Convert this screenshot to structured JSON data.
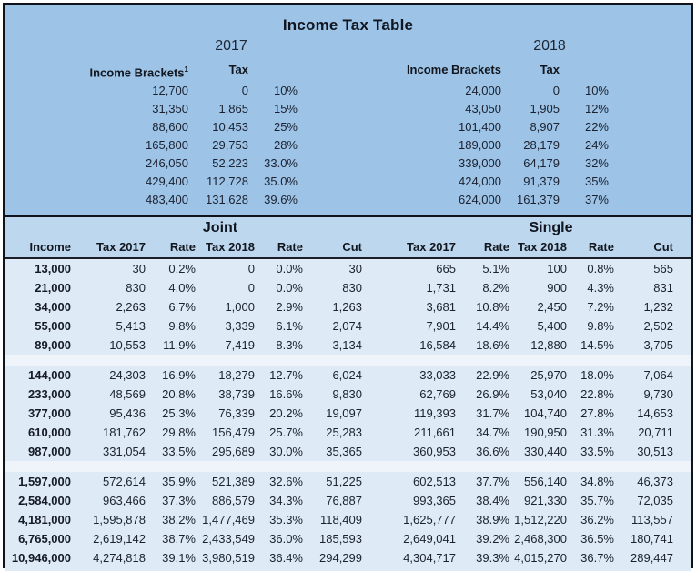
{
  "title": "Income Tax Table",
  "colors": {
    "top_background": "#9DC3E6",
    "header_band": "#BDD7EE",
    "data_row": "#DEEAF6",
    "separator_row": "#EFF4FA",
    "border": "#101319"
  },
  "top_table": {
    "year_2017": "2017",
    "year_2018": "2018",
    "header_brackets_2017": "Income Brackets",
    "footnote_marker": "1",
    "header_tax_2017": "Tax",
    "header_brackets_2018": "Income Brackets",
    "header_tax_2018": "Tax",
    "rows": [
      [
        "12,700",
        "0",
        "10%",
        "24,000",
        "0",
        "10%"
      ],
      [
        "31,350",
        "1,865",
        "15%",
        "43,050",
        "1,905",
        "12%"
      ],
      [
        "88,600",
        "10,453",
        "25%",
        "101,400",
        "8,907",
        "22%"
      ],
      [
        "165,800",
        "29,753",
        "28%",
        "189,000",
        "28,179",
        "24%"
      ],
      [
        "246,050",
        "52,223",
        "33.0%",
        "339,000",
        "64,179",
        "32%"
      ],
      [
        "429,400",
        "112,728",
        "35.0%",
        "424,000",
        "91,379",
        "35%"
      ],
      [
        "483,400",
        "131,628",
        "39.6%",
        "624,000",
        "161,379",
        "37%"
      ]
    ]
  },
  "bottom_table": {
    "joint_label": "Joint",
    "single_label": "Single",
    "col_headers": [
      "Income",
      "Tax 2017",
      "Rate",
      "Tax 2018",
      "Rate",
      "Cut",
      "Tax 2017",
      "Rate",
      "Tax 2018",
      "Rate",
      "Cut"
    ],
    "groups": [
      [
        [
          "13,000",
          "30",
          "0.2%",
          "0",
          "0.0%",
          "30",
          "665",
          "5.1%",
          "100",
          "0.8%",
          "565"
        ],
        [
          "21,000",
          "830",
          "4.0%",
          "0",
          "0.0%",
          "830",
          "1,731",
          "8.2%",
          "900",
          "4.3%",
          "831"
        ],
        [
          "34,000",
          "2,263",
          "6.7%",
          "1,000",
          "2.9%",
          "1,263",
          "3,681",
          "10.8%",
          "2,450",
          "7.2%",
          "1,232"
        ],
        [
          "55,000",
          "5,413",
          "9.8%",
          "3,339",
          "6.1%",
          "2,074",
          "7,901",
          "14.4%",
          "5,400",
          "9.8%",
          "2,502"
        ],
        [
          "89,000",
          "10,553",
          "11.9%",
          "7,419",
          "8.3%",
          "3,134",
          "16,584",
          "18.6%",
          "12,880",
          "14.5%",
          "3,705"
        ]
      ],
      [
        [
          "144,000",
          "24,303",
          "16.9%",
          "18,279",
          "12.7%",
          "6,024",
          "33,033",
          "22.9%",
          "25,970",
          "18.0%",
          "7,064"
        ],
        [
          "233,000",
          "48,569",
          "20.8%",
          "38,739",
          "16.6%",
          "9,830",
          "62,769",
          "26.9%",
          "53,040",
          "22.8%",
          "9,730"
        ],
        [
          "377,000",
          "95,436",
          "25.3%",
          "76,339",
          "20.2%",
          "19,097",
          "119,393",
          "31.7%",
          "104,740",
          "27.8%",
          "14,653"
        ],
        [
          "610,000",
          "181,762",
          "29.8%",
          "156,479",
          "25.7%",
          "25,283",
          "211,661",
          "34.7%",
          "190,950",
          "31.3%",
          "20,711"
        ],
        [
          "987,000",
          "331,054",
          "33.5%",
          "295,689",
          "30.0%",
          "35,365",
          "360,953",
          "36.6%",
          "330,440",
          "33.5%",
          "30,513"
        ]
      ],
      [
        [
          "1,597,000",
          "572,614",
          "35.9%",
          "521,389",
          "32.6%",
          "51,225",
          "602,513",
          "37.7%",
          "556,140",
          "34.8%",
          "46,373"
        ],
        [
          "2,584,000",
          "963,466",
          "37.3%",
          "886,579",
          "34.3%",
          "76,887",
          "993,365",
          "38.4%",
          "921,330",
          "35.7%",
          "72,035"
        ],
        [
          "4,181,000",
          "1,595,878",
          "38.2%",
          "1,477,469",
          "35.3%",
          "118,409",
          "1,625,777",
          "38.9%",
          "1,512,220",
          "36.2%",
          "113,557"
        ],
        [
          "6,765,000",
          "2,619,142",
          "38.7%",
          "2,433,549",
          "36.0%",
          "185,593",
          "2,649,041",
          "39.2%",
          "2,468,300",
          "36.5%",
          "180,741"
        ],
        [
          "10,946,000",
          "4,274,818",
          "39.1%",
          "3,980,519",
          "36.4%",
          "294,299",
          "4,304,717",
          "39.3%",
          "4,015,270",
          "36.7%",
          "289,447"
        ]
      ]
    ]
  }
}
